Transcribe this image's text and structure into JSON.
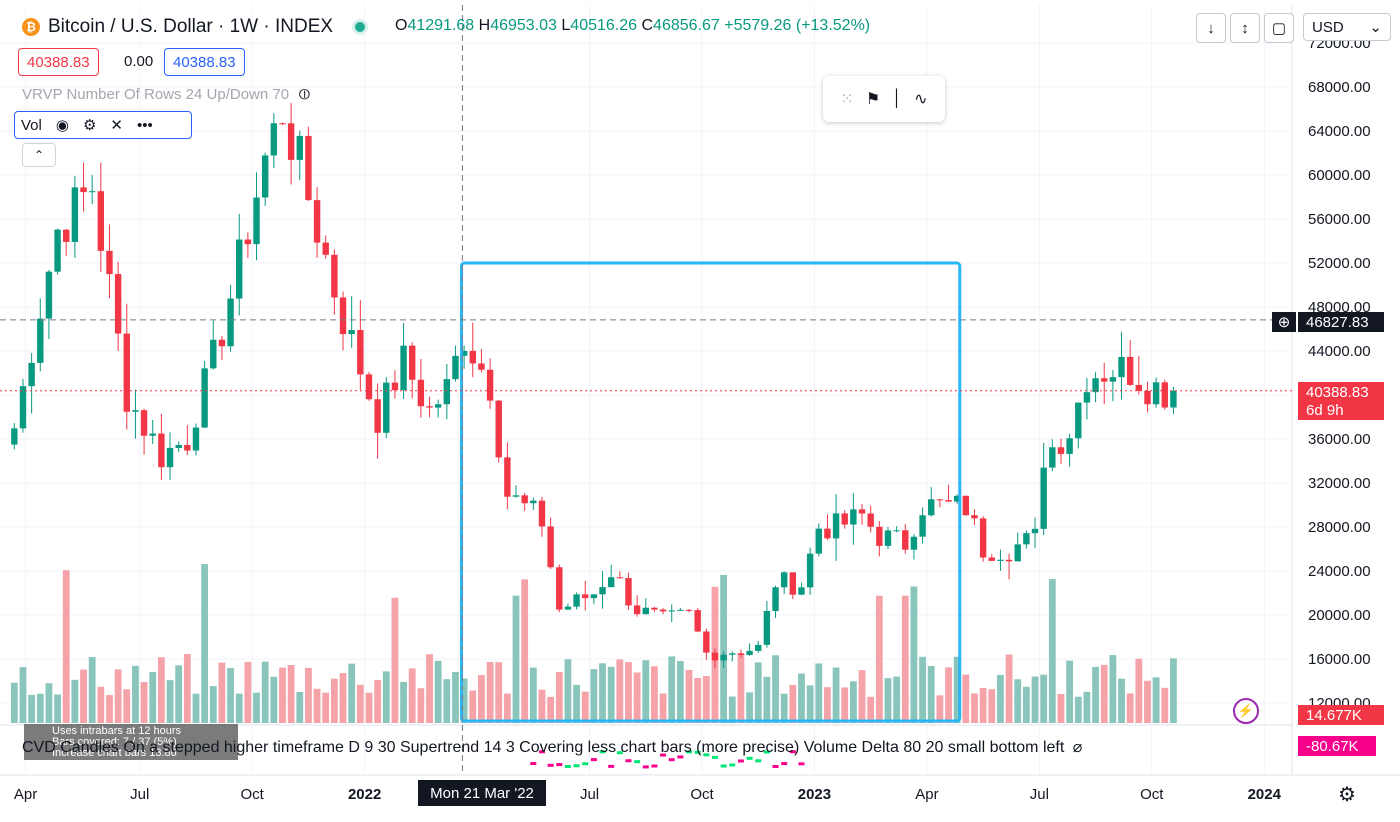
{
  "header": {
    "coin_symbol": "₿",
    "title": "Bitcoin / U.S. Dollar · 1W · INDEX",
    "ohlc": {
      "o_label": "O",
      "o": "41291.68",
      "h_label": "H",
      "h": "46953.03",
      "l_label": "L",
      "l": "40516.26",
      "c_label": "C",
      "c": "46856.67",
      "change": "+5579.26 (+13.52%)"
    },
    "bid": "40388.83",
    "spread": "0.00",
    "ask": "40388.83"
  },
  "indicators": {
    "vrvp": "VRVP Number Of Rows 24 Up/Down 70",
    "vol_label": "Vol",
    "collapse_icon": "⌃",
    "cvd_name": "CVD Candles",
    "cvd_desc": "On a stepped higher timeframe D 9 30 Supertrend 14 3 Covering less chart bars (more precise) Volume Delta 80 20 small bottom left",
    "cvd_note_1": "Uses intrabars at 12 hours",
    "cvd_note_2": "Bars covered: 7 / 37 (5%)",
    "cvd_note_3": "Increase chart bars 13.86"
  },
  "toolbar": {
    "currency": "USD",
    "currency_caret": "⌄"
  },
  "price_tags": {
    "crosshair": "46827.83",
    "last": "40388.83",
    "countdown": "6d 9h",
    "volume": "14.677K",
    "cvd": "-80.67K"
  },
  "crosshair_date": "Mon 21 Mar '22",
  "colors": {
    "up": "#089981",
    "down": "#f23645",
    "up_vol": "#89c5bb",
    "down_vol": "#f5a3a8",
    "accent": "#2962ff",
    "rect": "#29b6f6",
    "cvd_tag": "#f7008c"
  },
  "chart_data": {
    "type": "candlestick",
    "title": "Bitcoin / U.S. Dollar · 1W · INDEX",
    "y_ticks": [
      72000,
      68000,
      64000,
      60000,
      56000,
      52000,
      48000,
      44000,
      40000,
      36000,
      32000,
      28000,
      24000,
      20000,
      16000,
      12000
    ],
    "ylim": [
      12000,
      72000
    ],
    "x_ticks": [
      {
        "label": "Apr",
        "week": 1.3,
        "bold": false
      },
      {
        "label": "Jul",
        "week": 14.5,
        "bold": false
      },
      {
        "label": "Oct",
        "week": 27.5,
        "bold": false
      },
      {
        "label": "2022",
        "week": 40.5,
        "bold": true
      },
      {
        "label": "Jul",
        "week": 66.5,
        "bold": false
      },
      {
        "label": "Oct",
        "week": 79.5,
        "bold": false
      },
      {
        "label": "2023",
        "week": 92.5,
        "bold": true
      },
      {
        "label": "Apr",
        "week": 105.5,
        "bold": false
      },
      {
        "label": "Jul",
        "week": 118.5,
        "bold": false
      },
      {
        "label": "Oct",
        "week": 131.5,
        "bold": false
      },
      {
        "label": "2024",
        "week": 144.5,
        "bold": true
      }
    ],
    "crosshair_price": 46827.83,
    "last_price": 40388.83,
    "crosshair_week": 51.8,
    "highlight": {
      "week_start": 51.7,
      "week_end": 109.3,
      "price_low": 12000,
      "price_high": 52000
    },
    "ohlc_keypoints": [
      [
        0,
        37000
      ],
      [
        5,
        55000
      ],
      [
        9,
        59000
      ],
      [
        13,
        40000
      ],
      [
        17,
        34500
      ],
      [
        20,
        36000
      ],
      [
        24,
        46000
      ],
      [
        26,
        52000
      ],
      [
        29,
        61500
      ],
      [
        31,
        66000
      ],
      [
        34,
        58000
      ],
      [
        38,
        47000
      ],
      [
        42,
        38000
      ],
      [
        45,
        43000
      ],
      [
        48,
        38500
      ],
      [
        50,
        40500
      ],
      [
        52,
        45500
      ],
      [
        55,
        41000
      ],
      [
        57,
        31000
      ],
      [
        61,
        28500
      ],
      [
        63,
        20500
      ],
      [
        67,
        22000
      ],
      [
        69,
        24000
      ],
      [
        72,
        20500
      ],
      [
        75,
        19500
      ],
      [
        78,
        20000
      ],
      [
        80,
        16500
      ],
      [
        84,
        16800
      ],
      [
        86,
        17000
      ],
      [
        88,
        23000
      ],
      [
        91,
        22800
      ],
      [
        93,
        28000
      ],
      [
        95,
        28000
      ],
      [
        98,
        29000
      ],
      [
        100,
        27200
      ],
      [
        103,
        26500
      ],
      [
        105,
        30000
      ],
      [
        110,
        29800
      ],
      [
        112,
        26000
      ],
      [
        115,
        26000
      ],
      [
        118,
        27000
      ],
      [
        119,
        34500
      ],
      [
        122,
        36800
      ],
      [
        124,
        41900
      ],
      [
        127,
        42400
      ],
      [
        129,
        42300
      ],
      [
        131,
        41000
      ],
      [
        133,
        40388.83
      ]
    ]
  }
}
